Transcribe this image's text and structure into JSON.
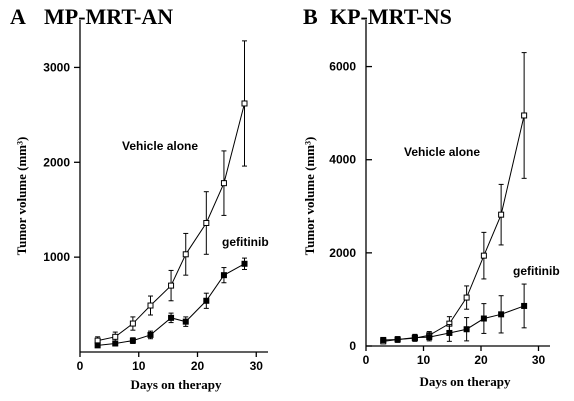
{
  "chart_data": [
    {
      "type": "line",
      "panel_letter": "A",
      "title": "MP-MRT-AN",
      "xlabel": "Days on therapy",
      "ylabel": "Tumor volume (mm³)",
      "xlim": [
        0,
        32
      ],
      "ylim": [
        0,
        3500
      ],
      "xticks": [
        0,
        10,
        20,
        30
      ],
      "yticks": [
        1000,
        2000,
        3000
      ],
      "grid": false,
      "series": [
        {
          "name": "Vehicle alone",
          "marker": "open-square",
          "x": [
            3,
            6,
            9,
            12,
            15.5,
            18,
            21.5,
            24.5,
            28
          ],
          "y": [
            120,
            160,
            300,
            490,
            700,
            1030,
            1360,
            1780,
            2620
          ],
          "err": [
            40,
            50,
            70,
            100,
            160,
            220,
            330,
            340,
            660
          ]
        },
        {
          "name": "gefitinib",
          "marker": "filled-square",
          "x": [
            3,
            6,
            9,
            12,
            15.5,
            18,
            21.5,
            24.5,
            28
          ],
          "y": [
            70,
            90,
            120,
            180,
            360,
            320,
            540,
            810,
            930
          ],
          "err": [
            20,
            25,
            30,
            40,
            50,
            50,
            80,
            80,
            60
          ]
        }
      ]
    },
    {
      "type": "line",
      "panel_letter": "B",
      "title": "KP-MRT-NS",
      "xlabel": "Days on therapy",
      "ylabel": "Tumor volume (mm³)",
      "xlim": [
        0,
        32
      ],
      "ylim": [
        0,
        7000
      ],
      "xticks": [
        0,
        10,
        20,
        30
      ],
      "yticks": [
        0,
        2000,
        4000,
        6000
      ],
      "grid": false,
      "series": [
        {
          "name": "Vehicle alone",
          "marker": "open-square",
          "x": [
            3,
            5.5,
            8.5,
            11,
            14.5,
            17.5,
            20.5,
            23.5,
            27.5
          ],
          "y": [
            100,
            140,
            170,
            230,
            480,
            1040,
            1940,
            2820,
            4950
          ],
          "err": [
            50,
            60,
            70,
            80,
            150,
            250,
            500,
            650,
            1350
          ]
        },
        {
          "name": "gefitinib",
          "marker": "filled-square",
          "x": [
            3,
            5.5,
            8.5,
            11,
            14.5,
            17.5,
            20.5,
            23.5,
            27.5
          ],
          "y": [
            130,
            140,
            180,
            190,
            280,
            360,
            590,
            680,
            860
          ],
          "err": [
            50,
            60,
            70,
            80,
            180,
            250,
            320,
            400,
            470
          ]
        }
      ]
    }
  ]
}
